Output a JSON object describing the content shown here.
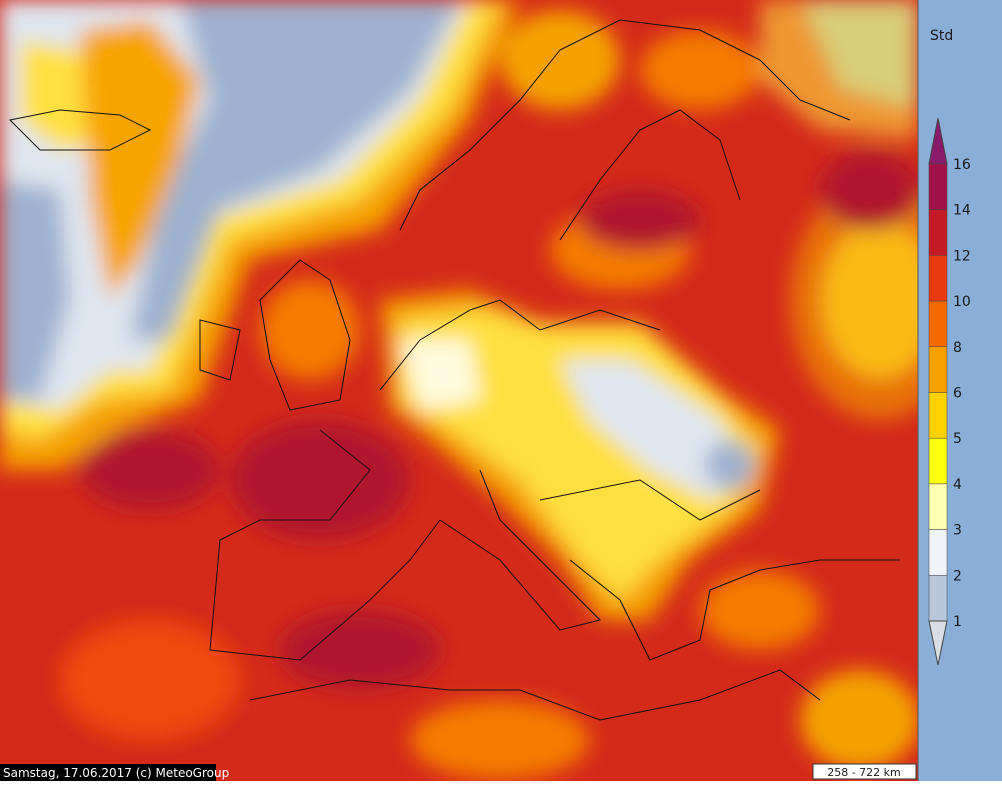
{
  "legend": {
    "unit": "Std",
    "ticks": [
      16,
      14,
      12,
      10,
      8,
      6,
      5,
      4,
      3,
      2,
      1
    ]
  },
  "footer": {
    "date_credit": "Samstag, 17.06.2017 (c) MeteoGroup",
    "scale": "258 - 722 km"
  }
}
